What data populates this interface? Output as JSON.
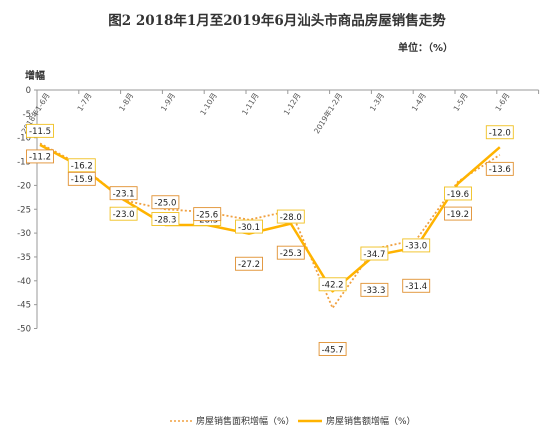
{
  "title": "图2   2018年1月至2019年6月汕头市商品房屋销售走势",
  "unit": "单位：（%）",
  "chart_data": {
    "type": "line",
    "ylabel": "增幅",
    "ylim": [
      -50,
      0
    ],
    "yticks": [
      0,
      -5,
      -10,
      -15,
      -20,
      -25,
      -30,
      -35,
      -40,
      -45,
      -50
    ],
    "categories": [
      "2018年1-6月",
      "1-7月",
      "1-8月",
      "1-9月",
      "1-10月",
      "1-11月",
      "1-12月",
      "2019年1-2月",
      "1-3月",
      "1-4月",
      "1-5月",
      "1-6月"
    ],
    "legend_position": "bottom",
    "grid": false,
    "series": [
      {
        "name": "房屋销售面积增幅（%）",
        "style": "dotted",
        "color": "#f0a040",
        "values": [
          -11.2,
          -15.9,
          -23.1,
          -25.0,
          -25.6,
          -27.2,
          -25.3,
          -45.7,
          -33.3,
          -31.4,
          -19.2,
          -13.6
        ]
      },
      {
        "name": "房屋销售额增幅（%）",
        "style": "solid",
        "color": "#ffb300",
        "values": [
          -11.5,
          -16.2,
          -23.0,
          -28.3,
          -28.3,
          -30.1,
          -28.0,
          -42.2,
          -34.7,
          -33.0,
          -19.6,
          -12.0
        ]
      }
    ],
    "data_labels": [
      {
        "text": "-11.5"
      },
      {
        "text": "-11.2"
      },
      {
        "text": "-16.2"
      },
      {
        "text": "-15.9"
      },
      {
        "text": "-23.1"
      },
      {
        "text": "-23.0"
      },
      {
        "text": "-28.3"
      },
      {
        "text": "-25.0"
      },
      {
        "text": "-28.3"
      },
      {
        "text": "-25.6"
      },
      {
        "text": "-30.1"
      },
      {
        "text": "-27.2"
      },
      {
        "text": "-28.0"
      },
      {
        "text": "-25.3"
      },
      {
        "text": "-42.2"
      },
      {
        "text": "-45.7"
      },
      {
        "text": "-34.7"
      },
      {
        "text": "-33.3"
      },
      {
        "text": "-33.0"
      },
      {
        "text": "-31.4"
      },
      {
        "text": "-19.6"
      },
      {
        "text": "-19.2"
      },
      {
        "text": "-12.0"
      },
      {
        "text": "-13.6"
      }
    ]
  }
}
